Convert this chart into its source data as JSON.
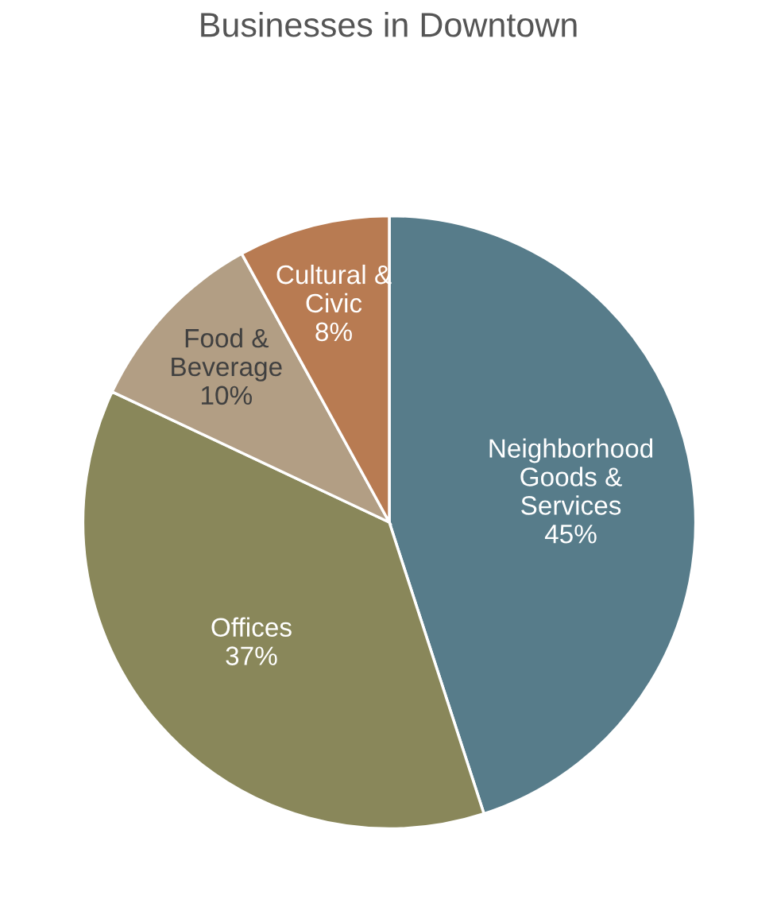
{
  "chart_data": {
    "type": "pie",
    "title": "Businesses in Downtown",
    "categories": [
      "Neighborhood\nGoods &\nServices",
      "Offices",
      "Food &\nBeverage",
      "Cultural &\nCivic"
    ],
    "values": [
      45,
      37,
      10,
      8
    ],
    "value_labels": [
      "45%",
      "37%",
      "10%",
      "8%"
    ],
    "colors": [
      "#577c8a",
      "#89875a",
      "#b29e84",
      "#b87b52"
    ]
  }
}
